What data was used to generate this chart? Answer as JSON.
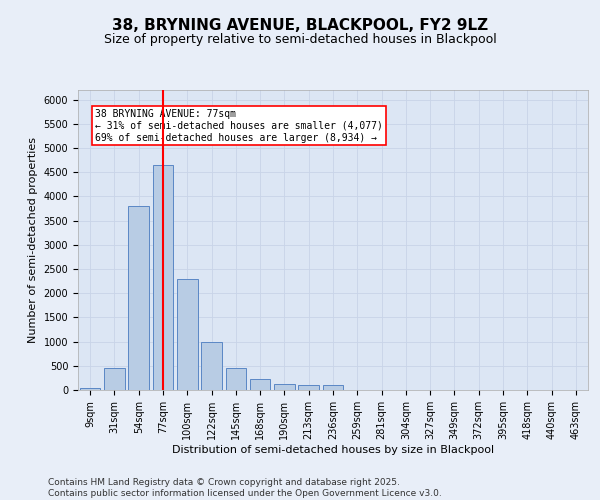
{
  "title1": "38, BRYNING AVENUE, BLACKPOOL, FY2 9LZ",
  "title2": "Size of property relative to semi-detached houses in Blackpool",
  "xlabel": "Distribution of semi-detached houses by size in Blackpool",
  "ylabel": "Number of semi-detached properties",
  "categories": [
    "9sqm",
    "31sqm",
    "54sqm",
    "77sqm",
    "100sqm",
    "122sqm",
    "145sqm",
    "168sqm",
    "190sqm",
    "213sqm",
    "236sqm",
    "259sqm",
    "281sqm",
    "304sqm",
    "327sqm",
    "349sqm",
    "372sqm",
    "395sqm",
    "418sqm",
    "440sqm",
    "463sqm"
  ],
  "values": [
    50,
    450,
    3800,
    4650,
    2300,
    1000,
    450,
    230,
    130,
    100,
    100,
    0,
    0,
    0,
    0,
    0,
    0,
    0,
    0,
    0,
    0
  ],
  "bar_color": "#b8cce4",
  "bar_edge_color": "#5a87c5",
  "vline_x_index": 3,
  "vline_color": "red",
  "annotation_text": "38 BRYNING AVENUE: 77sqm\n← 31% of semi-detached houses are smaller (4,077)\n69% of semi-detached houses are larger (8,934) →",
  "annotation_box_color": "white",
  "annotation_box_edge_color": "red",
  "ylim": [
    0,
    6200
  ],
  "yticks": [
    0,
    500,
    1000,
    1500,
    2000,
    2500,
    3000,
    3500,
    4000,
    4500,
    5000,
    5500,
    6000
  ],
  "grid_color": "#c8d4e8",
  "bg_color": "#e8eef8",
  "plot_bg_color": "#dce6f4",
  "footer1": "Contains HM Land Registry data © Crown copyright and database right 2025.",
  "footer2": "Contains public sector information licensed under the Open Government Licence v3.0.",
  "title_fontsize": 11,
  "subtitle_fontsize": 9,
  "label_fontsize": 8,
  "tick_fontsize": 7,
  "footer_fontsize": 6.5,
  "annot_fontsize": 7
}
